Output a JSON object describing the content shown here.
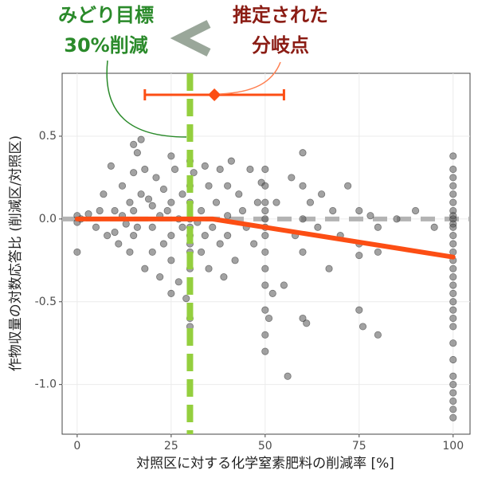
{
  "chart_data": {
    "type": "scatter",
    "x_label": "対照区に対する化学窒素肥料の削減率 [%]",
    "y_label": "作物収量の対数応答比 (削減区/対照区)",
    "xlim": [
      -4,
      104.5
    ],
    "ylim": [
      -1.3,
      0.88
    ],
    "xticks": [
      0,
      25,
      50,
      75,
      100
    ],
    "yticks": [
      {
        "value": -1.0,
        "label": "-1.0"
      },
      -0.5,
      {
        "value": 0,
        "label": "0.0"
      },
      0.5
    ],
    "grid": true,
    "color": "#555555",
    "x": [
      0,
      0,
      0,
      1,
      3,
      5,
      6,
      7,
      8,
      9,
      10,
      10,
      11,
      12,
      12,
      13,
      14,
      14,
      15,
      15,
      15,
      15,
      16,
      16,
      17,
      17,
      18,
      18,
      19,
      20,
      20,
      20,
      21,
      22,
      22,
      23,
      23,
      24,
      25,
      25,
      25,
      25,
      25,
      26,
      27,
      27,
      28,
      28,
      29,
      30,
      30,
      30,
      30,
      30,
      30,
      30,
      30,
      30,
      30,
      30,
      31,
      32,
      33,
      33,
      34,
      34,
      35,
      35,
      36,
      37,
      38,
      38,
      39,
      40,
      40,
      40,
      41,
      42,
      43,
      44,
      45,
      46,
      47,
      48,
      49,
      50,
      50,
      50,
      50,
      50,
      50,
      50,
      50,
      50,
      50,
      50,
      50,
      50,
      51,
      52,
      53,
      55,
      56,
      57,
      58,
      60,
      60,
      60,
      60,
      60,
      61,
      62,
      64,
      65,
      67,
      68,
      70,
      72,
      75,
      75,
      75,
      75,
      76,
      78,
      80,
      80,
      80,
      85,
      90,
      95,
      100,
      100,
      100,
      100,
      100,
      100,
      100,
      100,
      100,
      100,
      100,
      100,
      100,
      100,
      100,
      100,
      100,
      100,
      100,
      100,
      100,
      100,
      100,
      100,
      100,
      100,
      100,
      100,
      100,
      100,
      100
    ],
    "values": [
      0.02,
      -0.02,
      -0.2,
      0,
      0.03,
      -0.05,
      0.05,
      0.15,
      -0.1,
      0.32,
      0.05,
      -0.08,
      -0.15,
      0.2,
      0.02,
      -0.03,
      0.1,
      -0.2,
      0.45,
      0.28,
      0.05,
      -0.1,
      0.4,
      -0.05,
      0.48,
      0.15,
      0.3,
      -0.3,
      0.12,
      0.08,
      -0.05,
      -0.2,
      0.25,
      0.02,
      -0.35,
      0.18,
      -0.15,
      0.05,
      0.38,
      0.1,
      -0.1,
      -0.25,
      -0.45,
      0.3,
      0,
      -0.38,
      0.15,
      -0.05,
      -0.48,
      0.35,
      0.2,
      0.1,
      0,
      -0.05,
      -0.1,
      -0.15,
      -0.2,
      -0.3,
      -0.6,
      -0.65,
      0.28,
      -0.02,
      0.05,
      -0.2,
      0.32,
      -0.1,
      0.2,
      -0.3,
      -0.05,
      0.1,
      0.3,
      -0.15,
      -0.35,
      0.2,
      0.02,
      -0.1,
      0.35,
      -0.25,
      0.15,
      0.05,
      -0.05,
      0.3,
      -0.15,
      0.1,
      0.22,
      0.3,
      0.2,
      0.1,
      0.05,
      0,
      -0.05,
      -0.1,
      -0.2,
      -0.3,
      -0.4,
      -0.55,
      -0.7,
      -0.8,
      -0.6,
      -0.45,
      0.1,
      -0.4,
      -0.95,
      0.25,
      -0.1,
      0.4,
      0.2,
      0,
      -0.2,
      -0.6,
      -0.63,
      0.1,
      -0.05,
      0.15,
      -0.3,
      0.05,
      -0.1,
      0.2,
      0.05,
      -0.15,
      -0.22,
      -0.55,
      -0.65,
      0.02,
      -0.05,
      -0.2,
      -0.7,
      0,
      0.05,
      -0.05,
      0.38,
      0.3,
      0.25,
      0.2,
      0.15,
      0.1,
      0.05,
      0.02,
      0,
      -0.03,
      -0.05,
      -0.1,
      -0.15,
      -0.2,
      -0.25,
      -0.3,
      -0.35,
      -0.4,
      -0.45,
      -0.5,
      -0.55,
      -0.6,
      -0.65,
      -0.75,
      -0.85,
      -0.95,
      -1.0,
      -1.05,
      -1.1,
      -1.15,
      -1.2
    ],
    "fit_line": {
      "x": [
        0,
        36,
        100
      ],
      "values": [
        0,
        0,
        -0.23
      ],
      "color": "#fc4e14"
    },
    "breakpoint": {
      "x": 36.5,
      "y": 0.75,
      "ci": [
        18,
        55
      ],
      "color": "#fc4e14"
    },
    "vline": {
      "x": 30,
      "color": "#94cf3e"
    },
    "hline": {
      "y": 0,
      "color": "#b3b3b3"
    },
    "annotations": [
      {
        "lines": [
          "みどり目標",
          "30%削減"
        ],
        "color": "#2a8a2a"
      },
      {
        "lines": [
          "推定された",
          "分岐点"
        ],
        "color": "#8b1c14"
      }
    ]
  }
}
